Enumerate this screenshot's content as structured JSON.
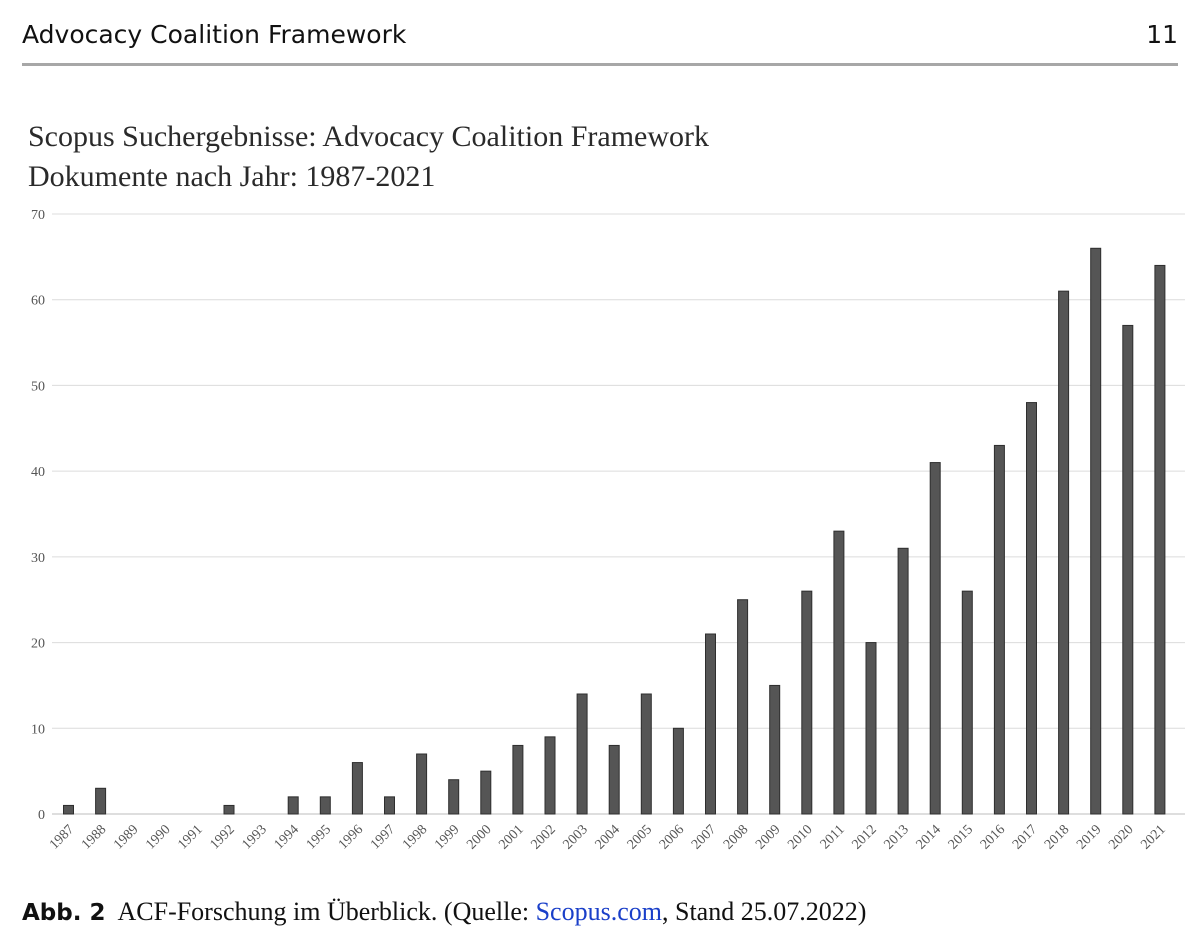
{
  "header": {
    "running_title": "Advocacy Coalition Framework",
    "page_number": "11"
  },
  "chart_data": {
    "type": "bar",
    "title": "Scopus Suchergebnisse: Advocacy Coalition Framework",
    "subtitle": "Dokumente nach Jahr: 1987-2021",
    "xlabel": "",
    "ylabel": "",
    "ylim": [
      0,
      70
    ],
    "yticks": [
      0,
      10,
      20,
      30,
      40,
      50,
      60,
      70
    ],
    "grid": true,
    "bar_color": "#555555",
    "categories": [
      "1987",
      "1988",
      "1989",
      "1990",
      "1991",
      "1992",
      "1993",
      "1994",
      "1995",
      "1996",
      "1997",
      "1998",
      "1999",
      "2000",
      "2001",
      "2002",
      "2003",
      "2004",
      "2005",
      "2006",
      "2007",
      "2008",
      "2009",
      "2010",
      "2011",
      "2012",
      "2013",
      "2014",
      "2015",
      "2016",
      "2017",
      "2018",
      "2019",
      "2020",
      "2021"
    ],
    "values": [
      1,
      3,
      0,
      0,
      0,
      1,
      0,
      2,
      2,
      6,
      2,
      7,
      4,
      5,
      8,
      9,
      14,
      8,
      14,
      10,
      21,
      25,
      15,
      26,
      33,
      20,
      31,
      41,
      26,
      43,
      48,
      61,
      66,
      57,
      64
    ]
  },
  "caption": {
    "label": "Abb. 2",
    "text_before": "ACF-Forschung im Überblick. (Quelle: ",
    "link_text": "Scopus.com",
    "text_after": ", Stand 25.07.2022)",
    "link_color": "#1a3fc9"
  }
}
